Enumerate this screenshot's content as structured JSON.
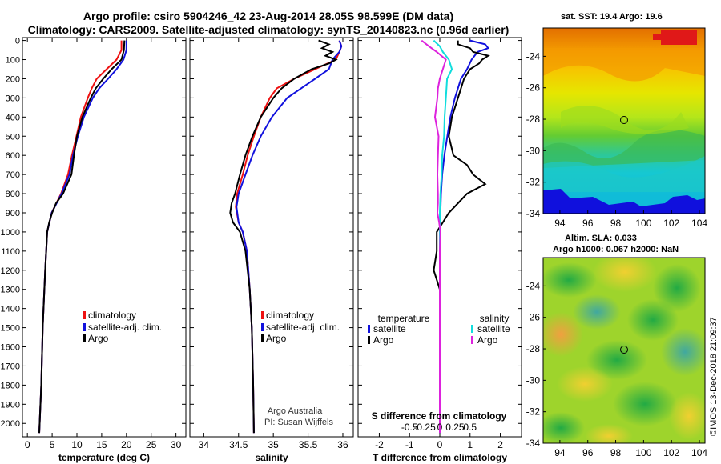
{
  "header": {
    "title_line1": "Argo profile: csiro 5904246_42 23-Aug-2014 28.05S 98.599E (DM data)",
    "title_line2": "Climatology: CARS2009. Satellite-adjusted climatology: synTS_20140823.nc (0.96d earlier)"
  },
  "maps": {
    "sst_title": "sat. SST: 19.4 Argo: 19.6",
    "sla_title1": "Altim. SLA: 0.033",
    "sla_title2": "Argo h1000: 0.067 h2000: NaN",
    "stamp": "©IMOS 13-Dec-2018 21:09:37",
    "lon_ticks": [
      "94",
      "96",
      "98",
      "100",
      "102",
      "104"
    ],
    "lat_ticks": [
      "-24",
      "-26",
      "-28",
      "-30",
      "-32",
      "-34"
    ],
    "lon_values": [
      94,
      96,
      98,
      100,
      102,
      104
    ],
    "lat_values": [
      -24,
      -26,
      -28,
      -30,
      -32,
      -34
    ],
    "lon_range": [
      92.8,
      104.4
    ],
    "lat_range": [
      -34,
      -22.2
    ],
    "argo_position": {
      "lon": 98.6,
      "lat": -28.05
    }
  },
  "colors": {
    "climatology": "#ee1111",
    "satellite_clim": "#1111dd",
    "argo": "#000000",
    "sat_t_diff": "#1111dd",
    "argo_t_diff": "#000000",
    "sat_s_diff": "#11dddd",
    "argo_s_diff": "#dd22dd"
  },
  "chart_data": [
    {
      "type": "line",
      "id": "temperature",
      "xlabel": "temperature (deg C)",
      "ylabel": "",
      "xlim": [
        -1,
        32
      ],
      "ylim": [
        2070,
        -15
      ],
      "xticks": [
        0,
        5,
        10,
        15,
        20,
        25,
        30
      ],
      "xtick_labels": [
        "0",
        "5",
        "10",
        "15",
        "20",
        "25",
        "30"
      ],
      "yticks": [
        0,
        100,
        200,
        300,
        400,
        500,
        600,
        700,
        800,
        900,
        1000,
        1100,
        1200,
        1300,
        1400,
        1500,
        1600,
        1700,
        1800,
        1900,
        2000
      ],
      "ytick_labels": [
        "0",
        "100",
        "200",
        "300",
        "400",
        "500",
        "600",
        "700",
        "800",
        "900",
        "1000",
        "1100",
        "1200",
        "1300",
        "1400",
        "1500",
        "1600",
        "1700",
        "1800",
        "1900",
        "2000"
      ],
      "legend_labels": [
        "climatology",
        "satellite-adj. clim.",
        "Argo"
      ],
      "legend_position": "lower-right",
      "series": [
        {
          "name": "climatology",
          "color": "#ee1111",
          "depth": [
            0,
            50,
            100,
            150,
            200,
            250,
            300,
            400,
            500,
            600,
            700,
            800,
            900,
            1000,
            1200,
            1500,
            1800,
            2050
          ],
          "values": [
            19.0,
            19.0,
            18.0,
            16.0,
            14.0,
            13.0,
            12.2,
            10.8,
            9.9,
            9.0,
            8.2,
            6.8,
            4.9,
            4.0,
            3.6,
            3.1,
            2.8,
            2.4
          ]
        },
        {
          "name": "satellite-adj. clim.",
          "color": "#1111dd",
          "depth": [
            0,
            50,
            100,
            150,
            200,
            250,
            300,
            400,
            500,
            600,
            700,
            800,
            900,
            1000,
            1200,
            1500,
            1800,
            2050
          ],
          "values": [
            20.0,
            20.0,
            19.4,
            18.0,
            16.3,
            14.5,
            13.2,
            11.4,
            10.2,
            9.2,
            8.5,
            6.9,
            4.9,
            4.0,
            3.6,
            3.1,
            2.8,
            2.4
          ]
        },
        {
          "name": "Argo",
          "color": "#000000",
          "depth": [
            0,
            50,
            100,
            150,
            200,
            250,
            300,
            400,
            500,
            600,
            700,
            800,
            850,
            900,
            950,
            1000,
            1200,
            1500,
            1800,
            2050
          ],
          "values": [
            19.6,
            19.5,
            19.0,
            17.0,
            15.3,
            13.8,
            12.8,
            11.1,
            10.0,
            9.4,
            8.9,
            7.2,
            5.8,
            5.0,
            4.4,
            4.0,
            3.6,
            3.1,
            2.8,
            2.4
          ]
        }
      ]
    },
    {
      "type": "line",
      "id": "salinity",
      "xlabel": "salinity",
      "ylabel": "",
      "xlim": [
        33.8,
        36.15
      ],
      "ylim": [
        2070,
        -15
      ],
      "xticks": [
        34,
        34.5,
        35,
        35.5,
        36
      ],
      "xtick_labels": [
        "34",
        "34.5",
        "35",
        "35.5",
        "36"
      ],
      "legend_labels": [
        "climatology",
        "satellite-adj. clim.",
        "Argo"
      ],
      "legend_position": "lower-right",
      "annotation_line1": "Argo Australia",
      "annotation_line2": "PI: Susan Wijffels",
      "series": [
        {
          "name": "climatology",
          "color": "#ee1111",
          "depth": [
            0,
            30,
            60,
            100,
            150,
            200,
            250,
            300,
            400,
            500,
            600,
            700,
            800,
            870,
            950,
            1000,
            1100,
            1300,
            1500,
            1800,
            2050
          ],
          "values": [
            35.95,
            35.98,
            35.95,
            35.9,
            35.6,
            35.3,
            35.05,
            34.95,
            34.82,
            34.72,
            34.63,
            34.56,
            34.48,
            34.46,
            34.5,
            34.56,
            34.62,
            34.66,
            34.69,
            34.71,
            34.72
          ]
        },
        {
          "name": "satellite-adj. clim.",
          "color": "#1111dd",
          "depth": [
            0,
            30,
            60,
            100,
            150,
            200,
            250,
            300,
            400,
            500,
            600,
            700,
            800,
            870,
            950,
            1000,
            1100,
            1300,
            1500,
            1800,
            2050
          ],
          "values": [
            35.95,
            35.98,
            35.95,
            35.85,
            35.8,
            35.6,
            35.4,
            35.2,
            34.98,
            34.82,
            34.7,
            34.6,
            34.5,
            34.47,
            34.5,
            34.56,
            34.62,
            34.66,
            34.69,
            34.71,
            34.72
          ]
        },
        {
          "name": "Argo",
          "color": "#000000",
          "depth": [
            0,
            20,
            40,
            60,
            80,
            100,
            120,
            150,
            200,
            250,
            300,
            400,
            500,
            600,
            700,
            800,
            850,
            900,
            950,
            1000,
            1100,
            1300,
            1500,
            1800,
            2050
          ],
          "values": [
            35.65,
            35.8,
            35.7,
            35.85,
            35.75,
            35.9,
            35.8,
            35.55,
            35.3,
            35.12,
            35.0,
            34.82,
            34.7,
            34.6,
            34.52,
            34.45,
            34.4,
            34.38,
            34.42,
            34.52,
            34.6,
            34.66,
            34.69,
            34.71,
            34.72
          ]
        }
      ]
    },
    {
      "type": "line",
      "id": "difference",
      "xlabel": "T difference from climatology",
      "xlabel_top": "S difference from climatology",
      "ylabel": "",
      "xlim": [
        -2.7,
        2.7
      ],
      "ylim": [
        2070,
        -15
      ],
      "xticks": [
        -2,
        -1,
        0,
        1,
        2
      ],
      "xtick_labels": [
        "-2",
        "-1",
        "0",
        "1",
        "2"
      ],
      "s_xticks": [
        -0.5,
        -0.25,
        0,
        0.25,
        0.5
      ],
      "s_xtick_labels": [
        "-0.5",
        "-0.25",
        "0",
        "0.25",
        "0.5"
      ],
      "s_xscale": 2,
      "legend_title_left": "temperature",
      "legend_title_right": "salinity",
      "legend_labels_left": [
        "satellite",
        "Argo"
      ],
      "legend_labels_right": [
        "satellite",
        "Argo"
      ],
      "series": [
        {
          "name": "satellite (T)",
          "color": "#1111dd",
          "scale": 1,
          "depth": [
            0,
            20,
            40,
            60,
            100,
            150,
            200,
            300,
            400,
            500,
            600,
            700,
            800,
            900,
            1000,
            1200,
            1500,
            1800,
            2050
          ],
          "values": [
            1.0,
            1.5,
            1.6,
            1.25,
            1.05,
            0.9,
            0.7,
            0.5,
            0.35,
            0.25,
            0.15,
            0.08,
            0.04,
            0.02,
            0.01,
            0.0,
            0.0,
            0.0,
            0.0
          ]
        },
        {
          "name": "Argo (T)",
          "color": "#000000",
          "scale": 1,
          "depth": [
            0,
            20,
            40,
            60,
            80,
            100,
            120,
            150,
            200,
            300,
            400,
            500,
            600,
            650,
            700,
            750,
            800,
            850,
            900,
            950,
            1000,
            1100,
            1200,
            1300,
            1500,
            1800,
            2050
          ],
          "values": [
            0.6,
            0.6,
            1.0,
            1.1,
            1.6,
            1.4,
            1.3,
            1.0,
            0.8,
            0.6,
            0.4,
            0.3,
            0.45,
            0.9,
            1.1,
            1.5,
            0.9,
            0.6,
            0.3,
            0.1,
            -0.1,
            -0.1,
            -0.2,
            0.0,
            0.0,
            0.0,
            0.0
          ]
        },
        {
          "name": "satellite (S)",
          "color": "#11dddd",
          "scale": 2,
          "depth": [
            0,
            30,
            60,
            100,
            150,
            200,
            300,
            400,
            500,
            600,
            700,
            800,
            900,
            1000,
            1200,
            1500,
            1800,
            2050
          ],
          "values": [
            -0.1,
            0.0,
            0.05,
            0.15,
            0.2,
            0.12,
            0.1,
            0.08,
            0.07,
            0.04,
            0.03,
            0.01,
            0.0,
            0.0,
            0.0,
            0.0,
            0.0,
            0.0
          ]
        },
        {
          "name": "Argo (S)",
          "color": "#dd22dd",
          "scale": 2,
          "depth": [
            0,
            30,
            60,
            100,
            150,
            200,
            250,
            300,
            400,
            500,
            600,
            700,
            800,
            850,
            900,
            950,
            1000,
            1100,
            1300,
            1500,
            1800,
            2050
          ],
          "values": [
            -0.3,
            -0.18,
            -0.05,
            0.1,
            0.05,
            0.0,
            -0.03,
            -0.04,
            -0.08,
            -0.02,
            -0.03,
            -0.04,
            -0.03,
            -0.03,
            -0.04,
            -0.01,
            0.01,
            0.0,
            0.0,
            0.0,
            0.0,
            0.0
          ]
        }
      ]
    }
  ]
}
